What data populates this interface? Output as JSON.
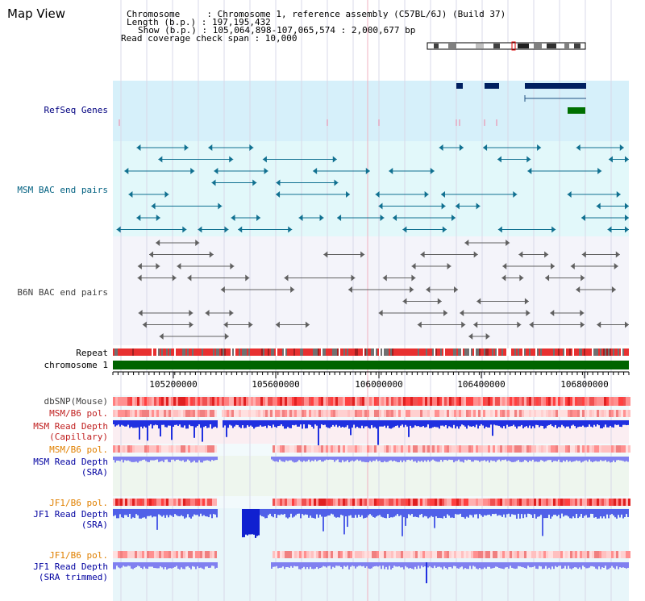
{
  "header": {
    "title": "Map View",
    "chromosome_line": "Chromosome     : Chromosome 1, reference assembly (C57BL/6J) (Build 37)",
    "length_line": "Length (b.p.) : 197,195,432",
    "show_line": "Show (b.p.) : 105,064,898-107,065,574 : 2,000,677 bp",
    "coverage_line": "Read coverage check span : 10,000"
  },
  "tracks": {
    "refseq": {
      "label": "RefSeq Genes",
      "color": "#000080"
    },
    "msm_bac": {
      "label": "MSM BAC end pairs",
      "color": "#006080"
    },
    "b6n_bac": {
      "label": "B6N BAC end pairs",
      "color": "#404040"
    },
    "repeat": {
      "label": "Repeat",
      "color": "#000000"
    },
    "chromosome": {
      "label": "chromosome 1",
      "color": "#000000"
    },
    "dbsnp": {
      "label": "dbSNP(Mouse)",
      "color": "#404040"
    },
    "msm_b6_pol": {
      "label": "MSM/B6 pol.",
      "color": "#c02020"
    },
    "msm_depth_cap_1": {
      "label": "MSM Read Depth",
      "color": "#c02020"
    },
    "msm_depth_cap_2": {
      "label": "(Capillary)",
      "color": "#c02020"
    },
    "msm_b6_pol_sra": {
      "label": "MSM/B6 pol.",
      "color": "#e08000"
    },
    "msm_depth_sra_1": {
      "label": "MSM Read Depth",
      "color": "#0000a0"
    },
    "msm_depth_sra_2": {
      "label": "(SRA)",
      "color": "#0000a0"
    },
    "jf1_b6_pol": {
      "label": "JF1/B6 pol.",
      "color": "#e08000"
    },
    "jf1_depth_1": {
      "label": "JF1 Read Depth",
      "color": "#0000a0"
    },
    "jf1_depth_2": {
      "label": "(SRA)",
      "color": "#0000a0"
    },
    "jf1_b6_pol_trim": {
      "label": "JF1/B6 pol.",
      "color": "#e08000"
    },
    "jf1_trim_1": {
      "label": "JF1 Read Depth",
      "color": "#0000a0"
    },
    "jf1_trim_2": {
      "label": "(SRA trimmed)",
      "color": "#0000a0"
    }
  },
  "axis": {
    "ticks": [
      "105200000",
      "105600000",
      "106000000",
      "106400000",
      "106800000"
    ]
  },
  "colors": {
    "refseq_bg": "#d6f0fa",
    "msm_bg": "#e2f8fa",
    "b6n_bg": "#f4f4fa",
    "gene_navy": "#002060",
    "gene_green": "#007000",
    "msm_feature": "#107090",
    "b6n_feature": "#606060",
    "chromosome_bar": "#006400",
    "depth_blue": "#2030e0",
    "depth_light": "#8080f0",
    "pol_red": "#e02020"
  }
}
